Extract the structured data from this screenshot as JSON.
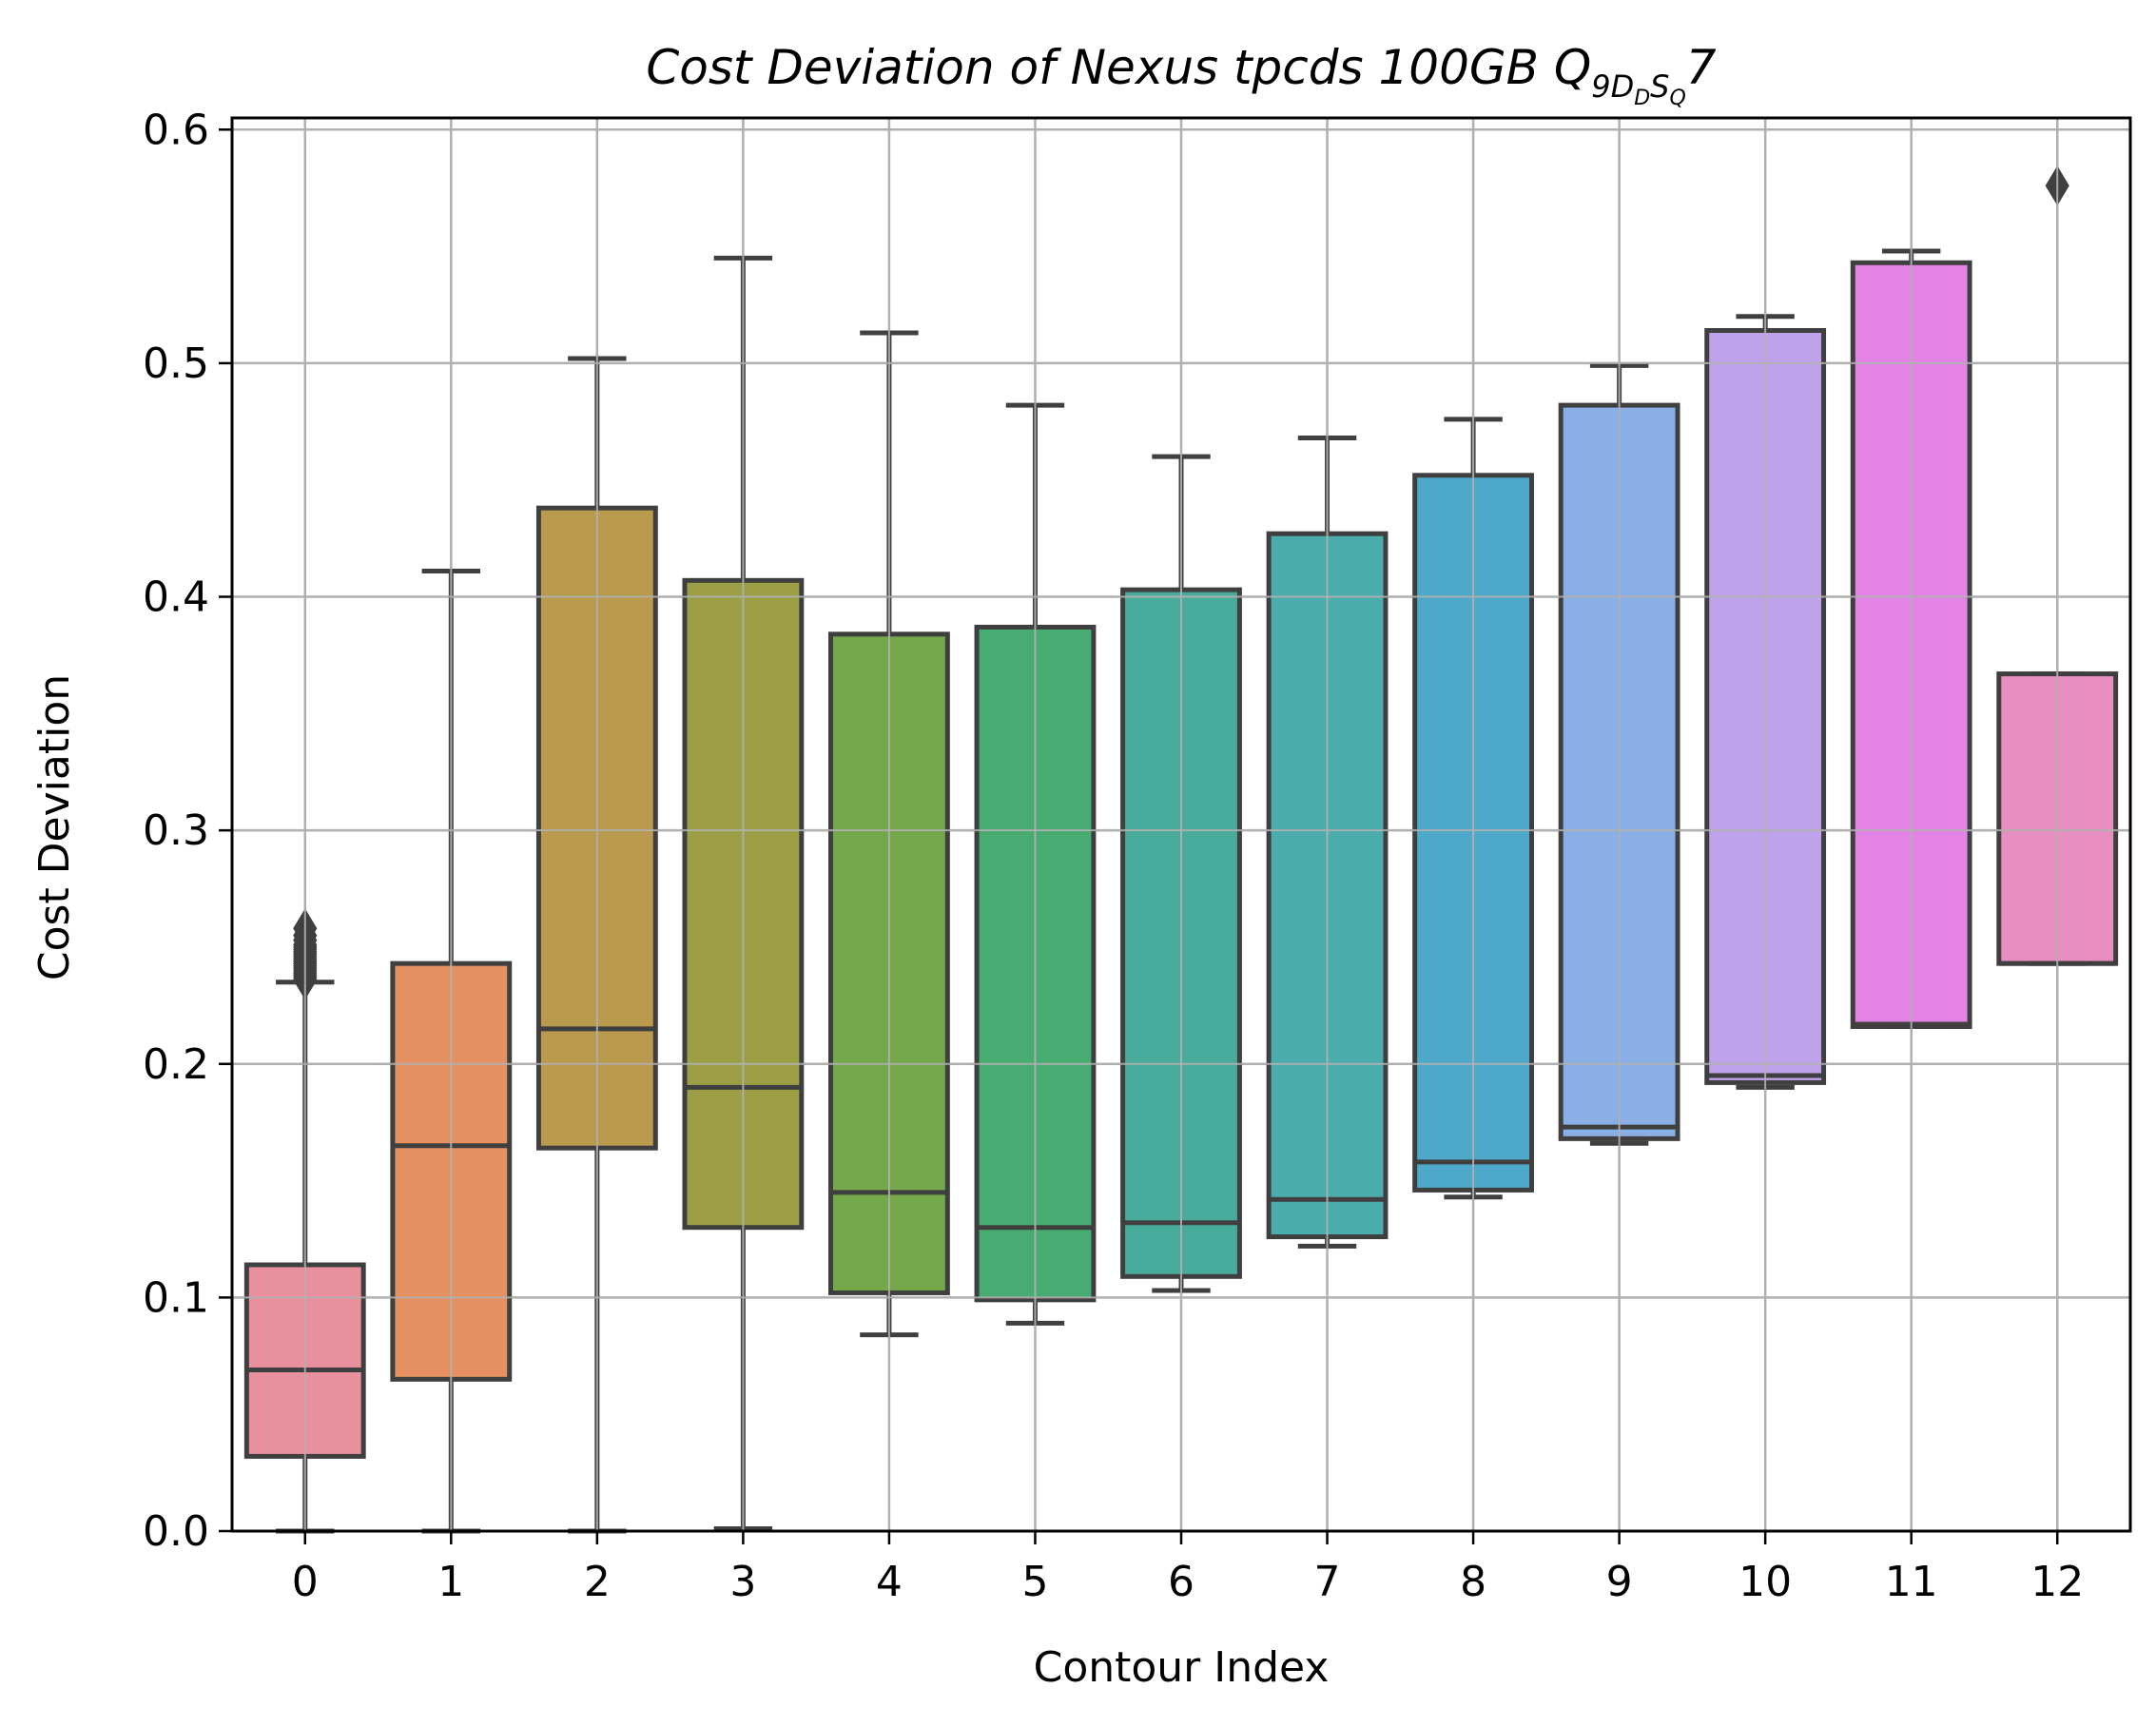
{
  "chart_data": {
    "type": "box",
    "title": {
      "main": "Cost Deviation of Nexus tpcds  100GB  Q",
      "subscript": "9D",
      "sub_subscript_1": "D",
      "mid_subscript": "S",
      "sub_subscript_2": "Q",
      "suffix": "7"
    },
    "xlabel": "Contour Index",
    "ylabel": "Cost Deviation",
    "ylim": [
      0.0,
      0.605
    ],
    "yticks": [
      "0.0",
      "0.1",
      "0.2",
      "0.3",
      "0.4",
      "0.5",
      "0.6"
    ],
    "grid": true,
    "categories": [
      "0",
      "1",
      "2",
      "3",
      "4",
      "5",
      "6",
      "7",
      "8",
      "9",
      "10",
      "11",
      "12"
    ],
    "boxes": [
      {
        "category": "0",
        "whisker_low": 0.0,
        "q1": 0.032,
        "median": 0.069,
        "q3": 0.114,
        "whisker_high": 0.235,
        "color": "#e8909e",
        "outliers": [
          0.236,
          0.237,
          0.238,
          0.239,
          0.24,
          0.241,
          0.242,
          0.243,
          0.244,
          0.245,
          0.246,
          0.247,
          0.248,
          0.249,
          0.25,
          0.251,
          0.253,
          0.255,
          0.258
        ]
      },
      {
        "category": "1",
        "whisker_low": 0.0,
        "q1": 0.065,
        "median": 0.165,
        "q3": 0.243,
        "whisker_high": 0.411,
        "color": "#e49060",
        "outliers": []
      },
      {
        "category": "2",
        "whisker_low": 0.0,
        "q1": 0.164,
        "median": 0.215,
        "q3": 0.438,
        "whisker_high": 0.502,
        "color": "#ba9a4c",
        "outliers": []
      },
      {
        "category": "3",
        "whisker_low": 0.001,
        "q1": 0.13,
        "median": 0.19,
        "q3": 0.407,
        "whisker_high": 0.545,
        "color": "#9c9e45",
        "outliers": []
      },
      {
        "category": "4",
        "whisker_low": 0.084,
        "q1": 0.102,
        "median": 0.145,
        "q3": 0.384,
        "whisker_high": 0.513,
        "color": "#74a84a",
        "outliers": []
      },
      {
        "category": "5",
        "whisker_low": 0.089,
        "q1": 0.099,
        "median": 0.13,
        "q3": 0.387,
        "whisker_high": 0.482,
        "color": "#47ac72",
        "outliers": []
      },
      {
        "category": "6",
        "whisker_low": 0.103,
        "q1": 0.109,
        "median": 0.132,
        "q3": 0.403,
        "whisker_high": 0.46,
        "color": "#49ab9b",
        "outliers": []
      },
      {
        "category": "7",
        "whisker_low": 0.122,
        "q1": 0.126,
        "median": 0.142,
        "q3": 0.427,
        "whisker_high": 0.468,
        "color": "#4bacae",
        "outliers": []
      },
      {
        "category": "8",
        "whisker_low": 0.143,
        "q1": 0.146,
        "median": 0.158,
        "q3": 0.452,
        "whisker_high": 0.476,
        "color": "#4da8c9",
        "outliers": []
      },
      {
        "category": "9",
        "whisker_low": 0.166,
        "q1": 0.168,
        "median": 0.173,
        "q3": 0.482,
        "whisker_high": 0.499,
        "color": "#8aaee6",
        "outliers": []
      },
      {
        "category": "10",
        "whisker_low": 0.19,
        "q1": 0.192,
        "median": 0.195,
        "q3": 0.514,
        "whisker_high": 0.52,
        "color": "#bea3ea",
        "outliers": []
      },
      {
        "category": "11",
        "whisker_low": 0.216,
        "q1": 0.216,
        "median": 0.217,
        "q3": 0.543,
        "whisker_high": 0.548,
        "color": "#e383e6",
        "outliers": []
      },
      {
        "category": "12",
        "whisker_low": 0.243,
        "q1": 0.243,
        "median": 0.243,
        "q3": 0.367,
        "whisker_high": 0.367,
        "color": "#e78fc1",
        "outliers": [
          0.576
        ]
      }
    ],
    "colors": {
      "box_edge": "#3f3f3f",
      "grid": "#b0b0b0",
      "axis": "#000000"
    }
  }
}
